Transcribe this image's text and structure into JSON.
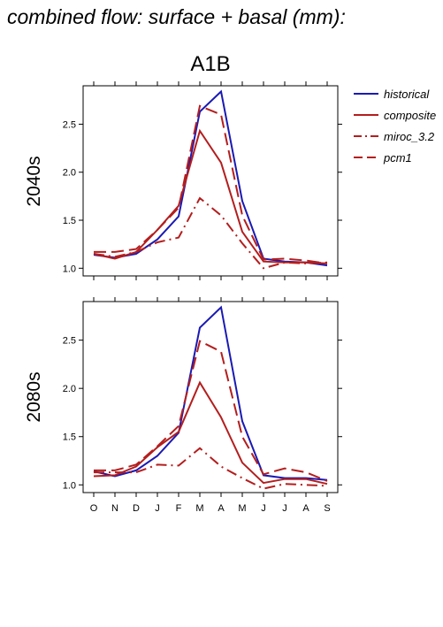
{
  "title": "combined flow: surface + basal (mm):",
  "subtitle": "A1B",
  "colors": {
    "historical": "#1a1ab4",
    "composite": "#b41e1e",
    "miroc_3.2": "#b41e1e",
    "pcm1": "#b41e1e"
  },
  "chart_data": [
    {
      "type": "line",
      "panel_label": "2040s",
      "categories": [
        "O",
        "N",
        "D",
        "J",
        "F",
        "M",
        "A",
        "M",
        "J",
        "J",
        "A",
        "S"
      ],
      "ylim": [
        0.92,
        2.9
      ],
      "yticks": [
        "1.0",
        "1.5",
        "2.0",
        "2.5"
      ],
      "legend_position": "top-right",
      "series": [
        {
          "name": "historical",
          "style": "solid",
          "values": [
            1.14,
            1.11,
            1.15,
            1.3,
            1.54,
            2.63,
            2.84,
            1.7,
            1.1,
            1.07,
            1.06,
            1.03
          ]
        },
        {
          "name": "composite",
          "style": "solid",
          "values": [
            1.15,
            1.1,
            1.17,
            1.4,
            1.65,
            2.43,
            2.1,
            1.38,
            1.07,
            1.06,
            1.06,
            1.05
          ]
        },
        {
          "name": "miroc_3.2",
          "style": "dashdot",
          "values": [
            1.15,
            1.12,
            1.17,
            1.27,
            1.32,
            1.73,
            1.55,
            1.26,
            1.0,
            1.06,
            1.05,
            1.06
          ]
        },
        {
          "name": "pcm1",
          "style": "dashed",
          "values": [
            1.17,
            1.17,
            1.2,
            1.4,
            1.63,
            2.69,
            2.6,
            1.55,
            1.09,
            1.1,
            1.08,
            1.05
          ]
        }
      ]
    },
    {
      "type": "line",
      "panel_label": "2080s",
      "categories": [
        "O",
        "N",
        "D",
        "J",
        "F",
        "M",
        "A",
        "M",
        "J",
        "J",
        "A",
        "S"
      ],
      "ylim": [
        0.92,
        2.9
      ],
      "yticks": [
        "1.0",
        "1.5",
        "2.0",
        "2.5"
      ],
      "series": [
        {
          "name": "historical",
          "style": "solid",
          "values": [
            1.14,
            1.09,
            1.15,
            1.3,
            1.54,
            2.63,
            2.84,
            1.66,
            1.1,
            1.07,
            1.07,
            1.05
          ]
        },
        {
          "name": "composite",
          "style": "solid",
          "values": [
            1.09,
            1.1,
            1.19,
            1.39,
            1.55,
            2.06,
            1.7,
            1.23,
            1.02,
            1.06,
            1.06,
            1.01
          ]
        },
        {
          "name": "miroc_3.2",
          "style": "dashdot",
          "values": [
            1.13,
            1.13,
            1.13,
            1.21,
            1.2,
            1.38,
            1.19,
            1.07,
            0.96,
            1.01,
            1.0,
            0.99
          ]
        },
        {
          "name": "pcm1",
          "style": "dashed",
          "values": [
            1.15,
            1.15,
            1.21,
            1.4,
            1.61,
            2.49,
            2.38,
            1.5,
            1.11,
            1.17,
            1.13,
            1.04
          ]
        }
      ]
    }
  ]
}
